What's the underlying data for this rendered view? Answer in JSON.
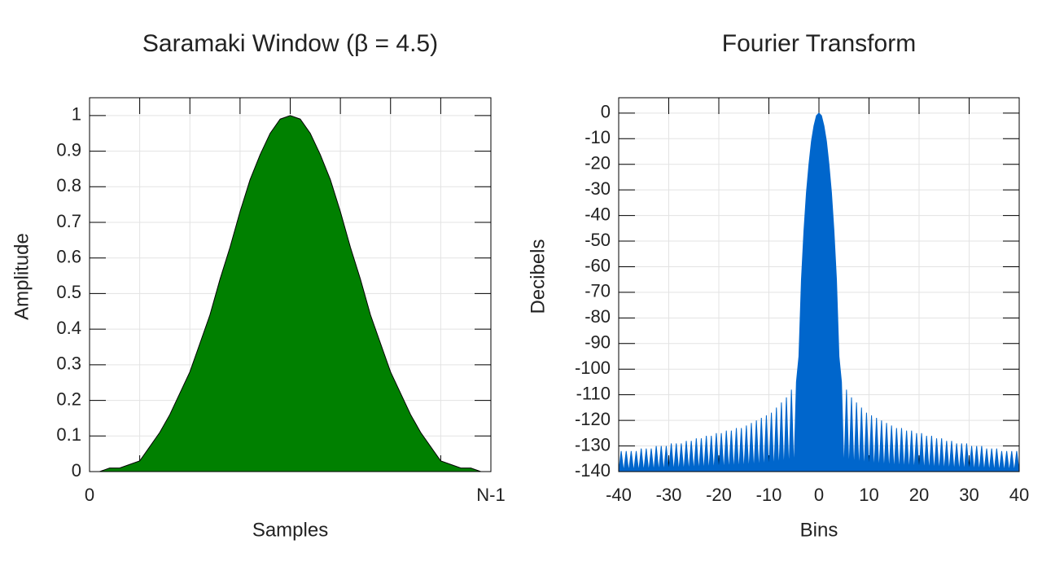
{
  "chart_data": [
    {
      "type": "area",
      "title": "Saramaki Window (β = 4.5)",
      "x_label": "Samples",
      "y_label": "Amplitude",
      "x": [
        0,
        1,
        2,
        3,
        4,
        5,
        6,
        7,
        8,
        9,
        10,
        11,
        12,
        13,
        14,
        15,
        16,
        17,
        18,
        19,
        20,
        21,
        22,
        23,
        24,
        25,
        26,
        27,
        28,
        29,
        30,
        31,
        32,
        33,
        34,
        35,
        36,
        37,
        38,
        39,
        40
      ],
      "values": [
        0,
        0,
        0.01,
        0.01,
        0.02,
        0.03,
        0.07,
        0.11,
        0.16,
        0.22,
        0.28,
        0.36,
        0.44,
        0.54,
        0.63,
        0.73,
        0.82,
        0.89,
        0.95,
        0.99,
        1,
        0.99,
        0.95,
        0.89,
        0.82,
        0.73,
        0.63,
        0.54,
        0.44,
        0.36,
        0.28,
        0.22,
        0.16,
        0.11,
        0.07,
        0.03,
        0.02,
        0.01,
        0.01,
        0,
        0
      ],
      "color": "#008000",
      "xlim": [
        0,
        40
      ],
      "xticks": [
        0,
        {
          "value": 40,
          "label": "N-1"
        }
      ],
      "ylim": [
        0,
        1.05
      ],
      "yticks": [
        0,
        0.1,
        0.2,
        0.3,
        0.4,
        0.5,
        0.6,
        0.7,
        0.8,
        0.9,
        1
      ],
      "grid": true
    },
    {
      "type": "area",
      "title": "Fourier Transform",
      "x_label": "Bins",
      "y_label": "Decibels",
      "x": [
        -40,
        -39.5,
        -39,
        -38.5,
        -38,
        -37.5,
        -37,
        -36.5,
        -36,
        -35.5,
        -35,
        -34.5,
        -34,
        -33.5,
        -33,
        -32.5,
        -32,
        -31.5,
        -31,
        -30.5,
        -30,
        -29.5,
        -29,
        -28.5,
        -28,
        -27.5,
        -27,
        -26.5,
        -26,
        -25.5,
        -25,
        -24.5,
        -24,
        -23.5,
        -23,
        -22.5,
        -22,
        -21.5,
        -21,
        -20.5,
        -20,
        -19.5,
        -19,
        -18.5,
        -18,
        -17.5,
        -17,
        -16.5,
        -16,
        -15.5,
        -15,
        -14.5,
        -14,
        -13.5,
        -13,
        -12.5,
        -12,
        -11.5,
        -11,
        -10.5,
        -10,
        -9.5,
        -9,
        -8.5,
        -8,
        -7.5,
        -7,
        -6.5,
        -6,
        -5.5,
        -5,
        -4.5,
        -4,
        -3.5,
        -3,
        -2.5,
        -2,
        -1.5,
        -1,
        -0.5,
        0,
        0.5,
        1,
        1.5,
        2,
        2.5,
        3,
        3.5,
        4,
        4.5,
        5,
        5.5,
        6,
        6.5,
        7,
        7.5,
        8,
        8.5,
        9,
        9.5,
        10,
        10.5,
        11,
        11.5,
        12,
        12.5,
        13,
        13.5,
        14,
        14.5,
        15,
        15.5,
        16,
        16.5,
        17,
        17.5,
        18,
        18.5,
        19,
        19.5,
        20,
        20.5,
        21,
        21.5,
        22,
        22.5,
        23,
        23.5,
        24,
        24.5,
        25,
        25.5,
        26,
        26.5,
        27,
        27.5,
        28,
        28.5,
        29,
        29.5,
        30,
        30.5,
        31,
        31.5,
        32,
        32.5,
        33,
        33.5,
        34,
        34.5,
        35,
        35.5,
        36,
        36.5,
        37,
        37.5,
        38,
        38.5,
        39,
        39.5,
        40
      ],
      "values": [
        -140,
        -132,
        -140,
        -132,
        -140,
        -132,
        -140,
        -132,
        -140,
        -131,
        -140,
        -131,
        -140,
        -131,
        -140,
        -130,
        -140,
        -130,
        -140,
        -130,
        -140,
        -129,
        -140,
        -129,
        -140,
        -129,
        -140,
        -128,
        -140,
        -128,
        -140,
        -127,
        -140,
        -127,
        -140,
        -126,
        -140,
        -126,
        -140,
        -125,
        -140,
        -125,
        -140,
        -124,
        -140,
        -124,
        -140,
        -123,
        -140,
        -123,
        -140,
        -122,
        -140,
        -121,
        -140,
        -120,
        -140,
        -119,
        -140,
        -118,
        -140,
        -117,
        -140,
        -115,
        -140,
        -113,
        -140,
        -111,
        -140,
        -108,
        -140,
        -105,
        -95,
        -65,
        -46,
        -31,
        -20,
        -11,
        -5,
        -1,
        0,
        -1,
        -5,
        -11,
        -20,
        -31,
        -46,
        -65,
        -95,
        -105,
        -140,
        -108,
        -140,
        -111,
        -140,
        -113,
        -140,
        -115,
        -140,
        -117,
        -140,
        -118,
        -140,
        -119,
        -140,
        -120,
        -140,
        -121,
        -140,
        -122,
        -140,
        -123,
        -140,
        -123,
        -140,
        -124,
        -140,
        -124,
        -140,
        -125,
        -140,
        -125,
        -140,
        -126,
        -140,
        -126,
        -140,
        -127,
        -140,
        -127,
        -140,
        -128,
        -140,
        -128,
        -140,
        -129,
        -140,
        -129,
        -140,
        -129,
        -140,
        -130,
        -140,
        -130,
        -140,
        -130,
        -140,
        -131,
        -140,
        -131,
        -140,
        -131,
        -140,
        -132,
        -140,
        -132,
        -140,
        -132,
        -140,
        -132,
        -140
      ],
      "color": "#0066cc",
      "xlim": [
        -40,
        40
      ],
      "xticks": [
        -40,
        -30,
        -20,
        -10,
        0,
        10,
        20,
        30,
        40
      ],
      "ylim": [
        -140,
        6
      ],
      "yticks": [
        0,
        -10,
        -20,
        -30,
        -40,
        -50,
        -60,
        -70,
        -80,
        -90,
        -100,
        -110,
        -120,
        -130,
        -140
      ],
      "grid": true
    }
  ]
}
